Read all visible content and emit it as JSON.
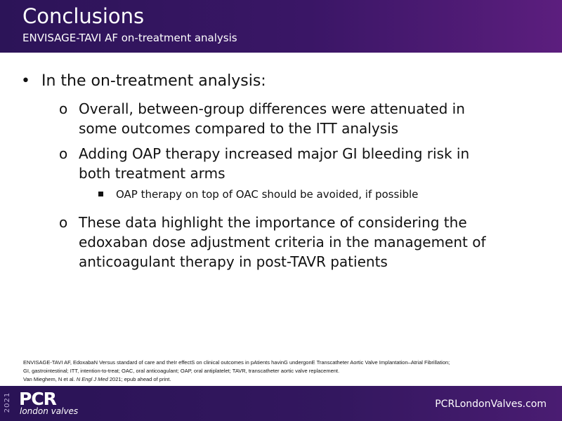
{
  "header": {
    "title": "Conclusions",
    "subtitle": "ENVISAGE-TAVI AF on-treatment analysis"
  },
  "bullets": [
    {
      "lines": [
        "In the on-treatment analysis:"
      ]
    },
    {
      "lines": [
        "Overall, between-group differences were attenuated in",
        "some outcomes compared to the ITT analysis"
      ]
    },
    {
      "lines": [
        "Adding OAP therapy increased major GI bleeding risk in",
        "both treatment arms"
      ]
    },
    {
      "lines": [
        "OAP therapy on top of OAC should be avoided, if possible"
      ]
    },
    {
      "lines": [
        "These data highlight the importance of considering the",
        "edoxaban dose adjustment criteria in the management of",
        "anticoagulant therapy in post-TAVR patients"
      ]
    }
  ],
  "footnote": {
    "lines": [
      "ENVISAGE-TAVI AF, EdoxabaN Versus standard of care and theIr effectS on clinical outcomes in pAtients havinG undergonE Transcatheter Aortic Valve Implantation–Atrial Fibrillation;",
      "GI, gastrointestinal;  ITT, intention-to-treat;  OAC, oral anticoagulant;  OAP, oral antiplatelet;  TAVR, transcatheter aortic valve replacement."
    ],
    "citation": {
      "authors": "Van Mieghem, N et al.",
      "journal": "N Engl J Med",
      "rest": "2021; epub ahead of print."
    }
  },
  "footer": {
    "year": "2021",
    "logo": "PCR",
    "tagline": "london valves",
    "website": "PCRLondonValves.com"
  }
}
